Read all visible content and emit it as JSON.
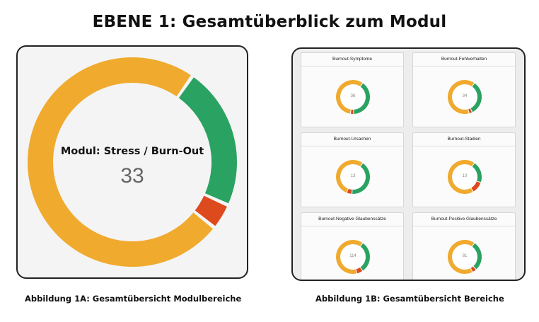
{
  "title": "EBENE 1: Gesamtüberblick zum Modul",
  "colors": {
    "yellow": "#F0AA2E",
    "green": "#2AA262",
    "red": "#DD4A1E"
  },
  "figure_a": {
    "label": "Modul: Stress / Burn-Out",
    "value": "33",
    "segments": {
      "yellow": 0.74,
      "green": 0.22,
      "red": 0.04
    },
    "caption": "Abbildung 1A: Gesamtübersicht Modulbereiche"
  },
  "figure_b": {
    "caption": "Abbildung 1B: Gesamtübersicht Bereiche",
    "cards": [
      {
        "title": "Burnout-Symptome",
        "value": "36",
        "segments": {
          "yellow": 0.55,
          "green": 0.38,
          "red": 0.03
        }
      },
      {
        "title": "Burnout-Fehlverhalten",
        "value": "34",
        "segments": {
          "yellow": 0.62,
          "green": 0.32,
          "red": 0.03
        }
      },
      {
        "title": "Burnout-Ursachen",
        "value": "13",
        "segments": {
          "yellow": 0.52,
          "green": 0.4,
          "red": 0.05
        }
      },
      {
        "title": "Burnout-Stadien",
        "value": "10",
        "segments": {
          "yellow": 0.66,
          "green": 0.2,
          "red": 0.11
        }
      },
      {
        "title": "Burnout-Negative Glaubenssätze",
        "value": "114",
        "segments": {
          "yellow": 0.62,
          "green": 0.3,
          "red": 0.06
        }
      },
      {
        "title": "Burnout-Positive Glaubenssätze",
        "value": "81",
        "segments": {
          "yellow": 0.66,
          "green": 0.28,
          "red": 0.04
        }
      }
    ]
  }
}
